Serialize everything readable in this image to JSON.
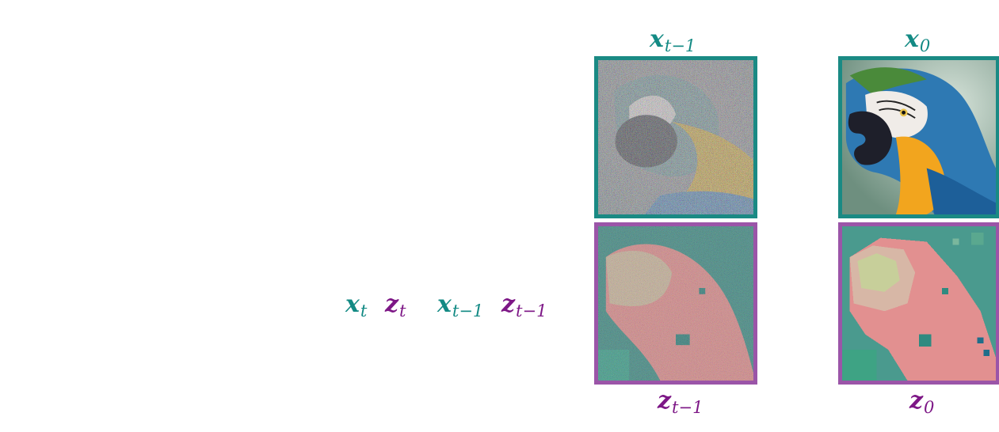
{
  "labels": {
    "left_sequence": [
      {
        "base": "x",
        "sub": "t",
        "color": "teal"
      },
      {
        "base": "z",
        "sub": "t",
        "color": "purple"
      },
      {
        "base": "x",
        "sub": "t−1",
        "color": "teal"
      },
      {
        "base": "z",
        "sub": "t−1",
        "color": "purple"
      }
    ],
    "col1_top": {
      "base": "x",
      "sub": "t−1"
    },
    "col1_bottom": {
      "base": "z",
      "sub": "t−1"
    },
    "col2_top": {
      "base": "x",
      "sub": "0"
    },
    "col2_bottom": {
      "base": "z",
      "sub": "0"
    }
  },
  "images": {
    "noisy_parrot": "noisy-rgb-parrot-image",
    "clean_parrot": "blue-and-gold-macaw-photo",
    "noisy_latent": "noisy-latent-visualization",
    "clean_latent": "pixelated-latent-visualization"
  },
  "colors": {
    "teal": "#138a84",
    "purple": "#7d1786",
    "teal_frame": "#1a8a84",
    "purple_frame": "#9b55a8"
  }
}
